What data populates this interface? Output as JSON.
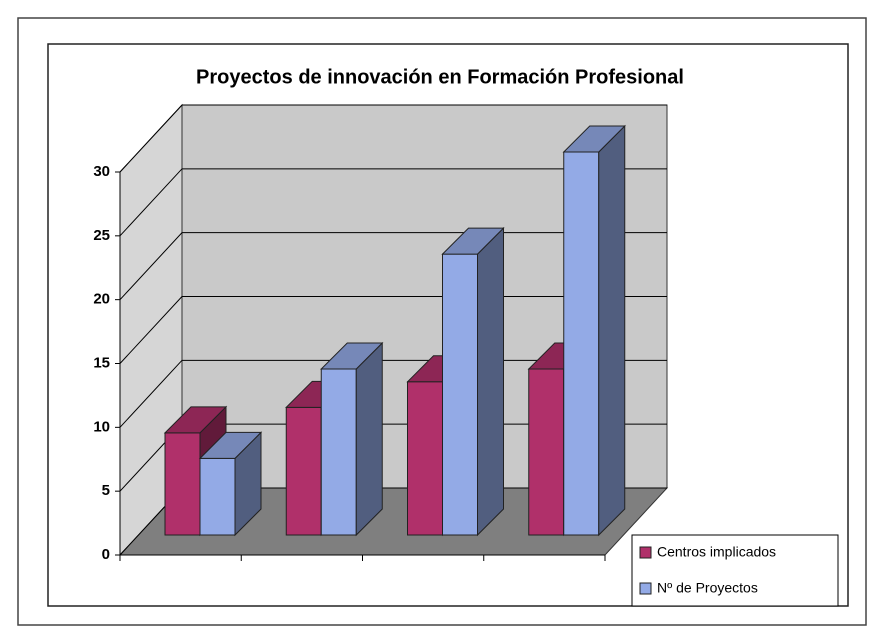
{
  "chart_data": {
    "type": "bar3d",
    "title": "Proyectos de innovación en Formación Profesional",
    "categories": [
      null,
      null,
      null,
      null
    ],
    "series": [
      {
        "name": "Centros implicados",
        "color": "#b0306a",
        "values": [
          8,
          10,
          12,
          13
        ]
      },
      {
        "name": "Nº de Proyectos",
        "color": "#93aae6",
        "values": [
          6,
          13,
          22,
          30
        ]
      }
    ],
    "ylim": [
      0,
      30
    ],
    "yticks": [
      0,
      5,
      10,
      15,
      20,
      25,
      30
    ],
    "grid": true,
    "legend": "lower right"
  }
}
